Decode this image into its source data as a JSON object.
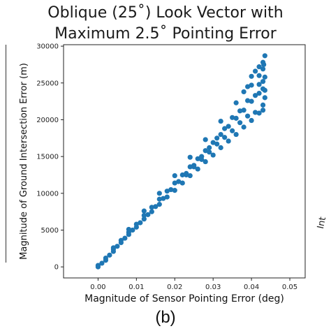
{
  "figure": {
    "title_line1": "Oblique (25˚) Look Vector with",
    "title_line2": "Maximum 2.5˚ Pointing Error",
    "panel_label": "(b)",
    "right_edge_fragment": "Int"
  },
  "chart_data": {
    "type": "scatter",
    "title": "Oblique (25˚) Look Vector with Maximum 2.5˚ Pointing Error",
    "xlabel": "Magnitude of Sensor Pointing Error (deg)",
    "ylabel": "Magnitude of Ground Intersection Error (m)",
    "xlim": [
      -0.009,
      0.054
    ],
    "ylim": [
      -1500,
      30200
    ],
    "x_ticks": [
      0.0,
      0.01,
      0.02,
      0.03,
      0.04,
      0.05
    ],
    "x_tick_labels": [
      "0.00",
      "0.01",
      "0.02",
      "0.03",
      "0.04",
      "0.05"
    ],
    "y_ticks": [
      0,
      5000,
      10000,
      15000,
      20000,
      25000,
      30000
    ],
    "y_tick_labels": [
      "0",
      "5000",
      "10000",
      "15000",
      "20000",
      "25000",
      "30000"
    ],
    "grid": false,
    "color": "#1f77b4",
    "series": [
      {
        "name": "",
        "points": [
          [
            0.0,
            0
          ],
          [
            0.002,
            1200
          ],
          [
            0.004,
            2400
          ],
          [
            0.006,
            3600
          ],
          [
            0.008,
            4700
          ],
          [
            0.01,
            5800
          ],
          [
            0.012,
            7000
          ],
          [
            0.014,
            8100
          ],
          [
            0.016,
            9200
          ],
          [
            0.018,
            10300
          ],
          [
            0.02,
            11400
          ],
          [
            0.022,
            12500
          ],
          [
            0.024,
            13600
          ],
          [
            0.026,
            14700
          ],
          [
            0.028,
            15800
          ],
          [
            0.03,
            16900
          ],
          [
            0.032,
            18000
          ],
          [
            0.034,
            19100
          ],
          [
            0.036,
            20200
          ],
          [
            0.038,
            21300
          ],
          [
            0.04,
            22500
          ],
          [
            0.042,
            23600
          ],
          [
            0.043,
            24200
          ],
          [
            0.002,
            900
          ],
          [
            0.004,
            2100
          ],
          [
            0.006,
            3300
          ],
          [
            0.008,
            4400
          ],
          [
            0.01,
            5400
          ],
          [
            0.012,
            6500
          ],
          [
            0.014,
            7500
          ],
          [
            0.016,
            8500
          ],
          [
            0.018,
            9500
          ],
          [
            0.02,
            10400
          ],
          [
            0.022,
            11400
          ],
          [
            0.024,
            12400
          ],
          [
            0.026,
            13300
          ],
          [
            0.028,
            14300
          ],
          [
            0.03,
            15200
          ],
          [
            0.032,
            16200
          ],
          [
            0.034,
            17100
          ],
          [
            0.036,
            18000
          ],
          [
            0.038,
            19000
          ],
          [
            0.04,
            19900
          ],
          [
            0.042,
            20900
          ],
          [
            0.043,
            21300
          ],
          [
            0.004,
            2600
          ],
          [
            0.008,
            5100
          ],
          [
            0.012,
            7600
          ],
          [
            0.016,
            10000
          ],
          [
            0.02,
            12400
          ],
          [
            0.024,
            14900
          ],
          [
            0.028,
            17300
          ],
          [
            0.032,
            19800
          ],
          [
            0.036,
            22300
          ],
          [
            0.04,
            24700
          ],
          [
            0.042,
            26000
          ],
          [
            0.043,
            26900
          ],
          [
            0.0435,
            28700
          ],
          [
            0.043,
            25200
          ],
          [
            0.0432,
            27500
          ],
          [
            0.042,
            24800
          ],
          [
            0.041,
            23300
          ],
          [
            0.039,
            22600
          ],
          [
            0.037,
            21200
          ],
          [
            0.035,
            20300
          ],
          [
            0.033,
            18800
          ],
          [
            0.031,
            17500
          ],
          [
            0.029,
            16200
          ],
          [
            0.027,
            15000
          ],
          [
            0.025,
            13800
          ],
          [
            0.023,
            12700
          ],
          [
            0.021,
            11600
          ],
          [
            0.019,
            10500
          ],
          [
            0.017,
            9300
          ],
          [
            0.015,
            8200
          ],
          [
            0.013,
            7100
          ],
          [
            0.011,
            6000
          ],
          [
            0.009,
            5000
          ],
          [
            0.007,
            3900
          ],
          [
            0.005,
            2800
          ],
          [
            0.003,
            1600
          ],
          [
            0.001,
            500
          ],
          [
            0.0,
            200
          ],
          [
            0.038,
            23800
          ],
          [
            0.039,
            24500
          ],
          [
            0.04,
            25900
          ],
          [
            0.041,
            26600
          ],
          [
            0.042,
            27200
          ],
          [
            0.043,
            27800
          ],
          [
            0.0435,
            25800
          ],
          [
            0.0435,
            24000
          ],
          [
            0.0435,
            23000
          ],
          [
            0.043,
            22000
          ],
          [
            0.041,
            21000
          ],
          [
            0.039,
            20500
          ],
          [
            0.037,
            19600
          ],
          [
            0.035,
            18500
          ],
          [
            0.033,
            17600
          ],
          [
            0.031,
            16700
          ],
          [
            0.029,
            15600
          ],
          [
            0.027,
            14600
          ],
          [
            0.025,
            13600
          ],
          [
            0.023,
            12500
          ]
        ]
      }
    ]
  }
}
